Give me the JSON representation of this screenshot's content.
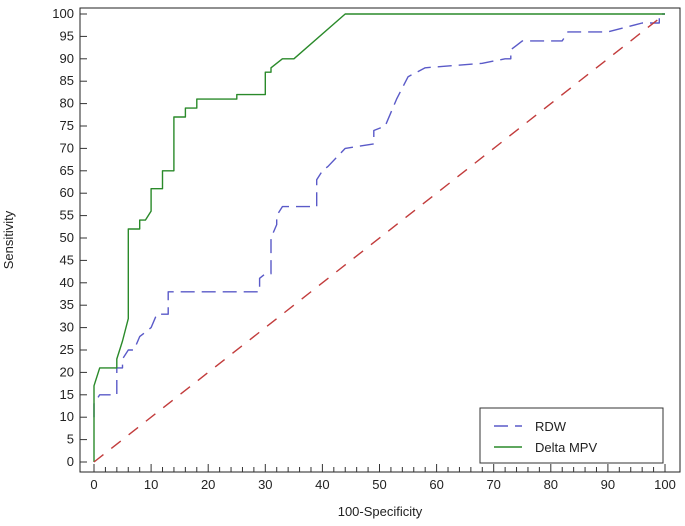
{
  "chart_data": {
    "type": "line",
    "xlabel": "100-Specificity",
    "ylabel": "Sensitivity",
    "xlim": [
      0,
      100
    ],
    "ylim": [
      0,
      100
    ],
    "x_ticks": [
      0,
      10,
      20,
      30,
      40,
      50,
      60,
      70,
      80,
      90,
      100
    ],
    "y_ticks": [
      0,
      5,
      10,
      15,
      20,
      25,
      30,
      35,
      40,
      45,
      50,
      55,
      60,
      65,
      70,
      75,
      80,
      85,
      90,
      95,
      100
    ],
    "grid": false,
    "legend_position": "bottom-right",
    "series": [
      {
        "name": "RDW",
        "color": "#5a5ac8",
        "style": "dashed",
        "points": [
          [
            0,
            10
          ],
          [
            0,
            13
          ],
          [
            1,
            15
          ],
          [
            4,
            15
          ],
          [
            4,
            18
          ],
          [
            4,
            21
          ],
          [
            5,
            21
          ],
          [
            5,
            23
          ],
          [
            6,
            25
          ],
          [
            7,
            25
          ],
          [
            8,
            28
          ],
          [
            10,
            30
          ],
          [
            11,
            33
          ],
          [
            13,
            33
          ],
          [
            13,
            38
          ],
          [
            20,
            38
          ],
          [
            29,
            38
          ],
          [
            29,
            41
          ],
          [
            30,
            42
          ],
          [
            31,
            42
          ],
          [
            31,
            44
          ],
          [
            31,
            50
          ],
          [
            32,
            53
          ],
          [
            32,
            55
          ],
          [
            33,
            57
          ],
          [
            39,
            57
          ],
          [
            39,
            63
          ],
          [
            40,
            65
          ],
          [
            41,
            66
          ],
          [
            44,
            70
          ],
          [
            49,
            71
          ],
          [
            49,
            74
          ],
          [
            51,
            75
          ],
          [
            53,
            81
          ],
          [
            55,
            86
          ],
          [
            58,
            88
          ],
          [
            68,
            89
          ],
          [
            72,
            90
          ],
          [
            73,
            90
          ],
          [
            73,
            92
          ],
          [
            74,
            93
          ],
          [
            75,
            94
          ],
          [
            82,
            94
          ],
          [
            83,
            96
          ],
          [
            90,
            96
          ],
          [
            96,
            98
          ],
          [
            99,
            98
          ],
          [
            99,
            100
          ],
          [
            100,
            100
          ]
        ]
      },
      {
        "name": "Delta MPV",
        "color": "#2a8a2a",
        "style": "solid",
        "points": [
          [
            0,
            0
          ],
          [
            0,
            10
          ],
          [
            0,
            13
          ],
          [
            0,
            17
          ],
          [
            1,
            21
          ],
          [
            4,
            21
          ],
          [
            4,
            23
          ],
          [
            5,
            27
          ],
          [
            6,
            32
          ],
          [
            6,
            52
          ],
          [
            8,
            52
          ],
          [
            8,
            54
          ],
          [
            9,
            54
          ],
          [
            10,
            56
          ],
          [
            10,
            61
          ],
          [
            12,
            61
          ],
          [
            12,
            65
          ],
          [
            14,
            65
          ],
          [
            14,
            77
          ],
          [
            16,
            77
          ],
          [
            16,
            79
          ],
          [
            18,
            79
          ],
          [
            18,
            81
          ],
          [
            25,
            81
          ],
          [
            25,
            82
          ],
          [
            30,
            82
          ],
          [
            30,
            87
          ],
          [
            31,
            87
          ],
          [
            31,
            88
          ],
          [
            33,
            90
          ],
          [
            35,
            90
          ],
          [
            44,
            100
          ],
          [
            100,
            100
          ]
        ]
      },
      {
        "name": "",
        "color": "#c23c3c",
        "style": "dashed",
        "points": [
          [
            0,
            0
          ],
          [
            100,
            100
          ]
        ]
      }
    ]
  }
}
